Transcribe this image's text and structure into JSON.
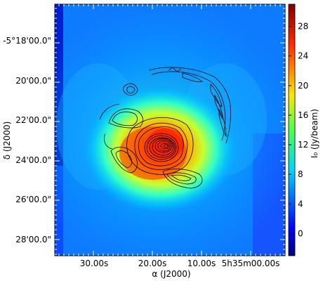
{
  "chart_data": {
    "type": "heatmap",
    "xlabel": "α (J2000)",
    "ylabel": "δ (J2000)",
    "colorbar_label": "I₀ (Jy/beam)",
    "x_ticks": [
      "30.00s",
      "20.00s",
      "10.00s",
      "5h35m00.00s"
    ],
    "y_ticks": [
      "-5°18'00.0\"",
      "20'00.0\"",
      "22'00.0\"",
      "24'00.0\"",
      "26'00.0\"",
      "28'00.0\""
    ],
    "colorbar_ticks": [
      0,
      4,
      8,
      12,
      16,
      20,
      24,
      28
    ],
    "colorbar_range": [
      -3,
      31
    ],
    "colormap": "jet",
    "peak_intensity": 29,
    "contours": "black, overlaid on emission peak and surrounding arcs"
  }
}
